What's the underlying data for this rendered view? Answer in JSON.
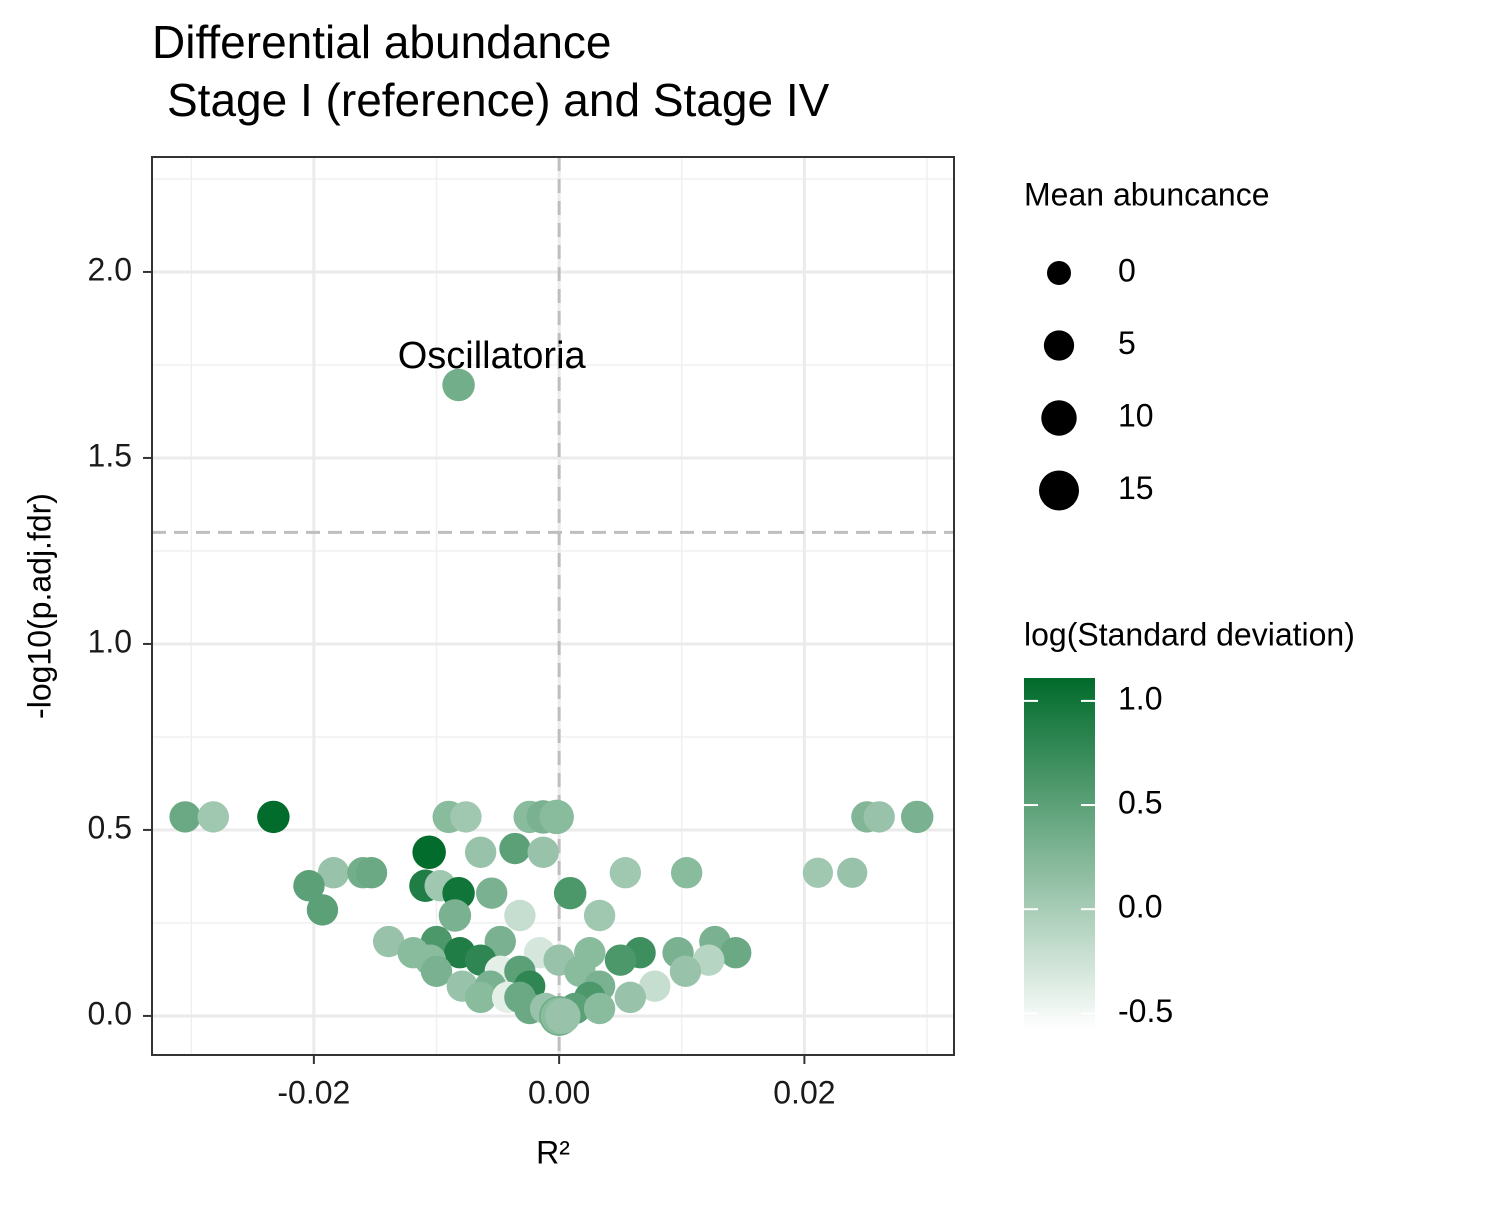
{
  "chart_data": {
    "type": "scatter",
    "title": [
      "Differential abundance",
      "Stage I (reference) and Stage IV"
    ],
    "xlabel": "R²",
    "ylabel": "-log10(p.adj.fdr)",
    "xlim": [
      -0.0332,
      0.0322
    ],
    "ylim": [
      -0.105,
      2.309
    ],
    "xticks": [
      -0.02,
      {
        "value": 0,
        "label": "0.00"
      },
      0.02
    ],
    "yticks": [
      {
        "value": 0,
        "label": "0.0"
      },
      0.5,
      {
        "value": 1,
        "label": "1.0"
      },
      1.5,
      {
        "value": 2,
        "label": "2.0"
      }
    ],
    "xminor": [
      -0.03,
      -0.01,
      0.01,
      0.03
    ],
    "yminor": [
      0.25,
      0.75,
      1.25,
      1.75,
      2.25
    ],
    "grid": true,
    "reference_lines": {
      "x": 0,
      "y": 1.3
    },
    "annotations": [
      {
        "text": "Oscillatoria",
        "x": -0.0055,
        "y": 1.78
      }
    ],
    "x": [
      -0.0305,
      -0.0282,
      -0.0233,
      -0.009,
      -0.0076,
      -0.0024,
      -0.0013,
      -0.0002,
      0.0251,
      0.0261,
      0.0292,
      -0.0082,
      -0.0106,
      -0.0064,
      -0.0036,
      -0.0013,
      -0.0184,
      -0.016,
      -0.0153,
      0.0054,
      0.0104,
      0.0211,
      0.0239,
      -0.0204,
      -0.0109,
      -0.0097,
      -0.0082,
      -0.0055,
      0.0009,
      -0.0193,
      -0.0085,
      -0.0032,
      0.0033,
      -0.0139,
      -0.01,
      -0.0048,
      0.0127,
      -0.0119,
      -0.0081,
      -0.0016,
      0.0025,
      0.0066,
      0.0144,
      0.0097,
      -0.0105,
      -0.0064,
      0,
      0.005,
      0.0122,
      -0.01,
      -0.0048,
      -0.0032,
      0.0017,
      0.0103,
      -0.0079,
      -0.0056,
      -0.0024,
      0.0033,
      0.0078,
      -0.0064,
      -0.0042,
      -0.0032,
      0.0025,
      0.0058,
      -0.0024,
      -0.0011,
      0.0013,
      0.0033,
      0,
      0,
      0.0003
    ],
    "values": [
      0.535,
      0.535,
      0.535,
      0.535,
      0.535,
      0.535,
      0.535,
      0.535,
      0.535,
      0.535,
      0.535,
      1.696,
      0.44,
      0.44,
      0.45,
      0.44,
      0.385,
      0.385,
      0.385,
      0.385,
      0.385,
      0.385,
      0.385,
      0.35,
      0.35,
      0.35,
      0.33,
      0.33,
      0.33,
      0.285,
      0.27,
      0.27,
      0.27,
      0.2,
      0.2,
      0.2,
      0.2,
      0.17,
      0.17,
      0.17,
      0.17,
      0.17,
      0.17,
      0.17,
      0.15,
      0.15,
      0.15,
      0.15,
      0.15,
      0.12,
      0.12,
      0.12,
      0.12,
      0.12,
      0.08,
      0.08,
      0.08,
      0.08,
      0.08,
      0.05,
      0.05,
      0.05,
      0.05,
      0.05,
      0.02,
      0.02,
      0.02,
      0.02,
      0,
      0,
      0
    ],
    "sizes": [
      6,
      6,
      7,
      7,
      6,
      7,
      8,
      9,
      6,
      6,
      7,
      7,
      8,
      6,
      6,
      6,
      6,
      6,
      6,
      6,
      6,
      5,
      5,
      6,
      7,
      6,
      7,
      6,
      7,
      6,
      7,
      6,
      6,
      6,
      6,
      6,
      6,
      6,
      6,
      6,
      6,
      6,
      6,
      6,
      6,
      6,
      6,
      6,
      6,
      6,
      6,
      6,
      6,
      6,
      6,
      6,
      6,
      6,
      6,
      6,
      6,
      6,
      6,
      6,
      6,
      6,
      6,
      6,
      15,
      12,
      10
    ],
    "color_values": [
      0.4,
      0.05,
      1.1,
      0.2,
      0.05,
      0.2,
      0.3,
      0.2,
      0.25,
      0.1,
      0.3,
      0.35,
      1.1,
      0.1,
      0.5,
      0.1,
      0.1,
      0.35,
      0.4,
      0.05,
      0.2,
      0.05,
      0.1,
      0.5,
      0.9,
      0.05,
      1.0,
      0.3,
      0.6,
      0.5,
      0.3,
      -0.2,
      0.05,
      0.1,
      0.6,
      0.3,
      0.3,
      0.2,
      0.9,
      -0.3,
      0.2,
      0.7,
      0.4,
      0.3,
      0.2,
      0.8,
      0.1,
      0.6,
      -0.1,
      0.3,
      -0.4,
      0.5,
      0.2,
      0.1,
      0.1,
      0.3,
      0.8,
      0.3,
      -0.2,
      0.2,
      -0.4,
      0.4,
      0.6,
      0.1,
      0.4,
      0.1,
      0.5,
      0.2,
      0.4,
      0.2,
      0.1
    ],
    "size_legend": {
      "title": "Mean abuncance",
      "values": [
        0,
        5,
        10,
        15
      ]
    },
    "color_legend": {
      "title": "log(Standard deviation)",
      "clim": [
        -0.58,
        1.11
      ],
      "low": "#ffffff",
      "high": "#006b2b",
      "ticks": [
        {
          "value": 1,
          "label": "1.0"
        },
        0.5,
        {
          "value": 0,
          "label": "0.0"
        },
        -0.5
      ]
    }
  }
}
